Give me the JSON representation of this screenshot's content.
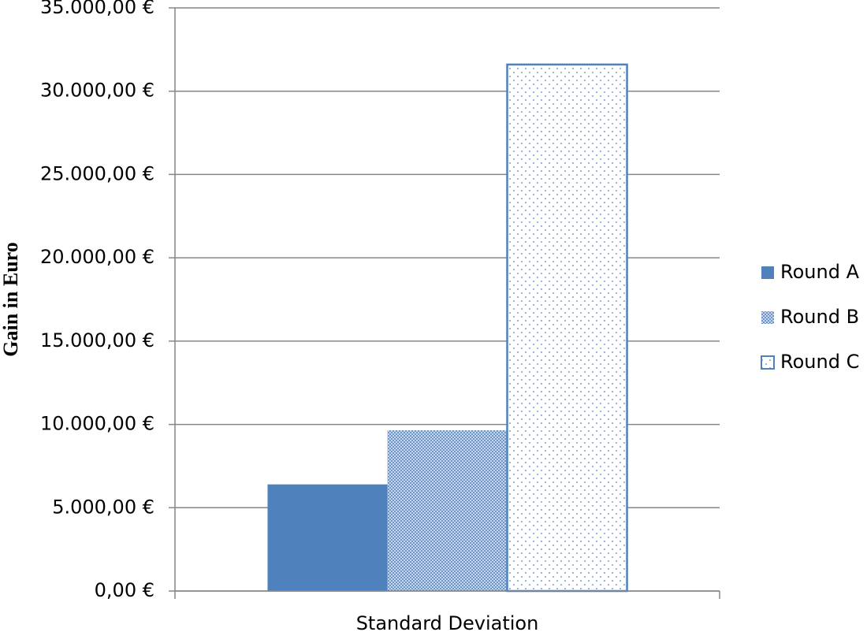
{
  "chart_data": {
    "type": "bar",
    "y_label": "Gain in Euro",
    "categories": [
      "Standard Deviation"
    ],
    "series": [
      {
        "name": "Round A",
        "color": "#4f81bd",
        "pattern": "solid",
        "values": [
          6400
        ]
      },
      {
        "name": "Round B",
        "color": "#4f81bd",
        "pattern": "dense-dots",
        "values": [
          9650
        ]
      },
      {
        "name": "Round C",
        "color": "#4f81bd",
        "pattern": "sparse-dots",
        "values": [
          31600
        ]
      }
    ],
    "ylim": [
      0,
      35000
    ],
    "yticks": [
      {
        "value": 0,
        "label": "0,00 €"
      },
      {
        "value": 5000,
        "label": "5.000,00 €"
      },
      {
        "value": 10000,
        "label": "10.000,00 €"
      },
      {
        "value": 15000,
        "label": "15.000,00 €"
      },
      {
        "value": 20000,
        "label": "20.000,00 €"
      },
      {
        "value": 25000,
        "label": "25.000,00 €"
      },
      {
        "value": 30000,
        "label": "30.000,00 €"
      },
      {
        "value": 35000,
        "label": "35.000,00 €"
      }
    ],
    "grid": true,
    "legend": "right"
  }
}
